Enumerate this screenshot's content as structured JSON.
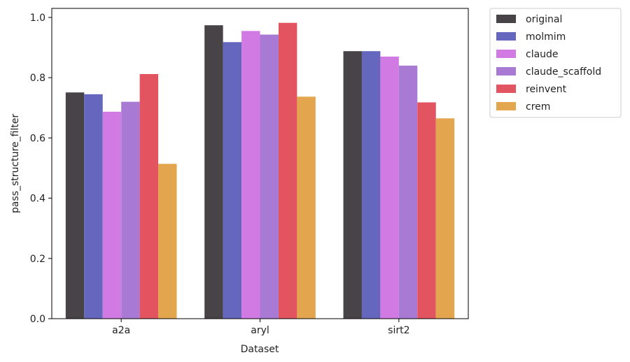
{
  "chart_data": {
    "type": "bar",
    "xlabel": "Dataset",
    "ylabel": "pass_structure_filter",
    "categories": [
      "a2a",
      "aryl",
      "sirt2"
    ],
    "ylim": [
      0,
      1.03
    ],
    "yticks": [
      "0.0",
      "0.2",
      "0.4",
      "0.6",
      "0.8",
      "1.0"
    ],
    "grid": false,
    "legend_position": "outside-top-right",
    "series": [
      {
        "name": "original",
        "color": "#484346",
        "values": [
          0.751,
          0.974,
          0.888
        ]
      },
      {
        "name": "molmim",
        "color": "#6467bd",
        "values": [
          0.745,
          0.918,
          0.888
        ]
      },
      {
        "name": "claude",
        "color": "#d27ae3",
        "values": [
          0.687,
          0.955,
          0.87
        ]
      },
      {
        "name": "claude_scaffold",
        "color": "#a87ad3",
        "values": [
          0.72,
          0.943,
          0.84
        ]
      },
      {
        "name": "reinvent",
        "color": "#e2545f",
        "values": [
          0.812,
          0.982,
          0.718
        ]
      },
      {
        "name": "crem",
        "color": "#e3a64e",
        "values": [
          0.514,
          0.737,
          0.665
        ]
      }
    ]
  }
}
